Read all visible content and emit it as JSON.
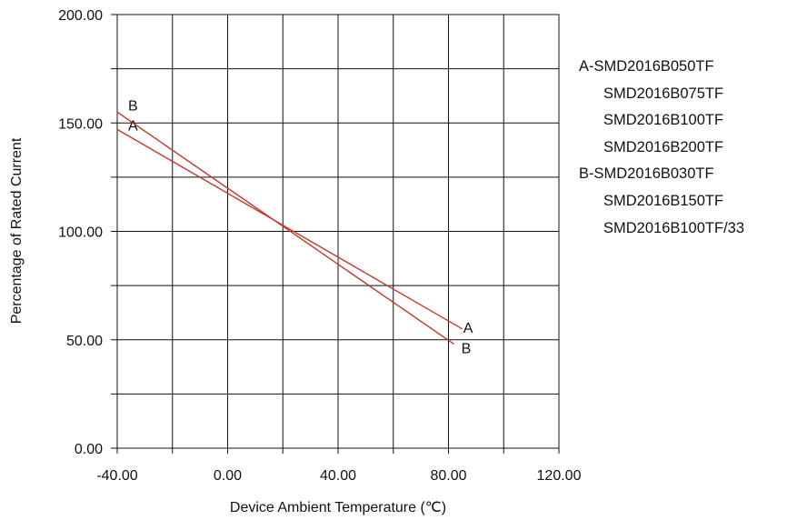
{
  "chart_data": {
    "type": "line",
    "title": "",
    "xlabel": "Device Ambient Temperature (℃)",
    "ylabel": "Percentage of Rated Current",
    "xlim": [
      -40,
      120
    ],
    "ylim": [
      0,
      200
    ],
    "x_ticks": [
      "-40.00",
      "0.00",
      "40.00",
      "80.00",
      "120.00"
    ],
    "y_ticks": [
      "0.00",
      "50.00",
      "100.00",
      "150.00",
      "200.00"
    ],
    "x_tick_values": [
      -40,
      0,
      40,
      80,
      120
    ],
    "y_tick_values": [
      0,
      50,
      100,
      150,
      200
    ],
    "x_minor_grid": [
      -20,
      20,
      60,
      100
    ],
    "y_minor_grid": [
      25,
      75,
      125,
      175
    ],
    "grid": true,
    "series": [
      {
        "name": "A",
        "color": "#c0392b",
        "x": [
          -40,
          85
        ],
        "y": [
          147,
          55
        ],
        "label_start": "A",
        "label_end": "A"
      },
      {
        "name": "B",
        "color": "#c0392b",
        "x": [
          -40,
          82
        ],
        "y": [
          155,
          48
        ],
        "label_start": "B",
        "label_end": "B"
      }
    ],
    "legend": {
      "placement": "right",
      "groups": [
        {
          "label": "A-",
          "items": [
            "SMD2016B050TF",
            "SMD2016B075TF",
            "SMD2016B100TF",
            "SMD2016B200TF"
          ]
        },
        {
          "label": "B-",
          "items": [
            "SMD2016B030TF",
            "SMD2016B150TF",
            "SMD2016B100TF/33"
          ]
        }
      ]
    }
  }
}
